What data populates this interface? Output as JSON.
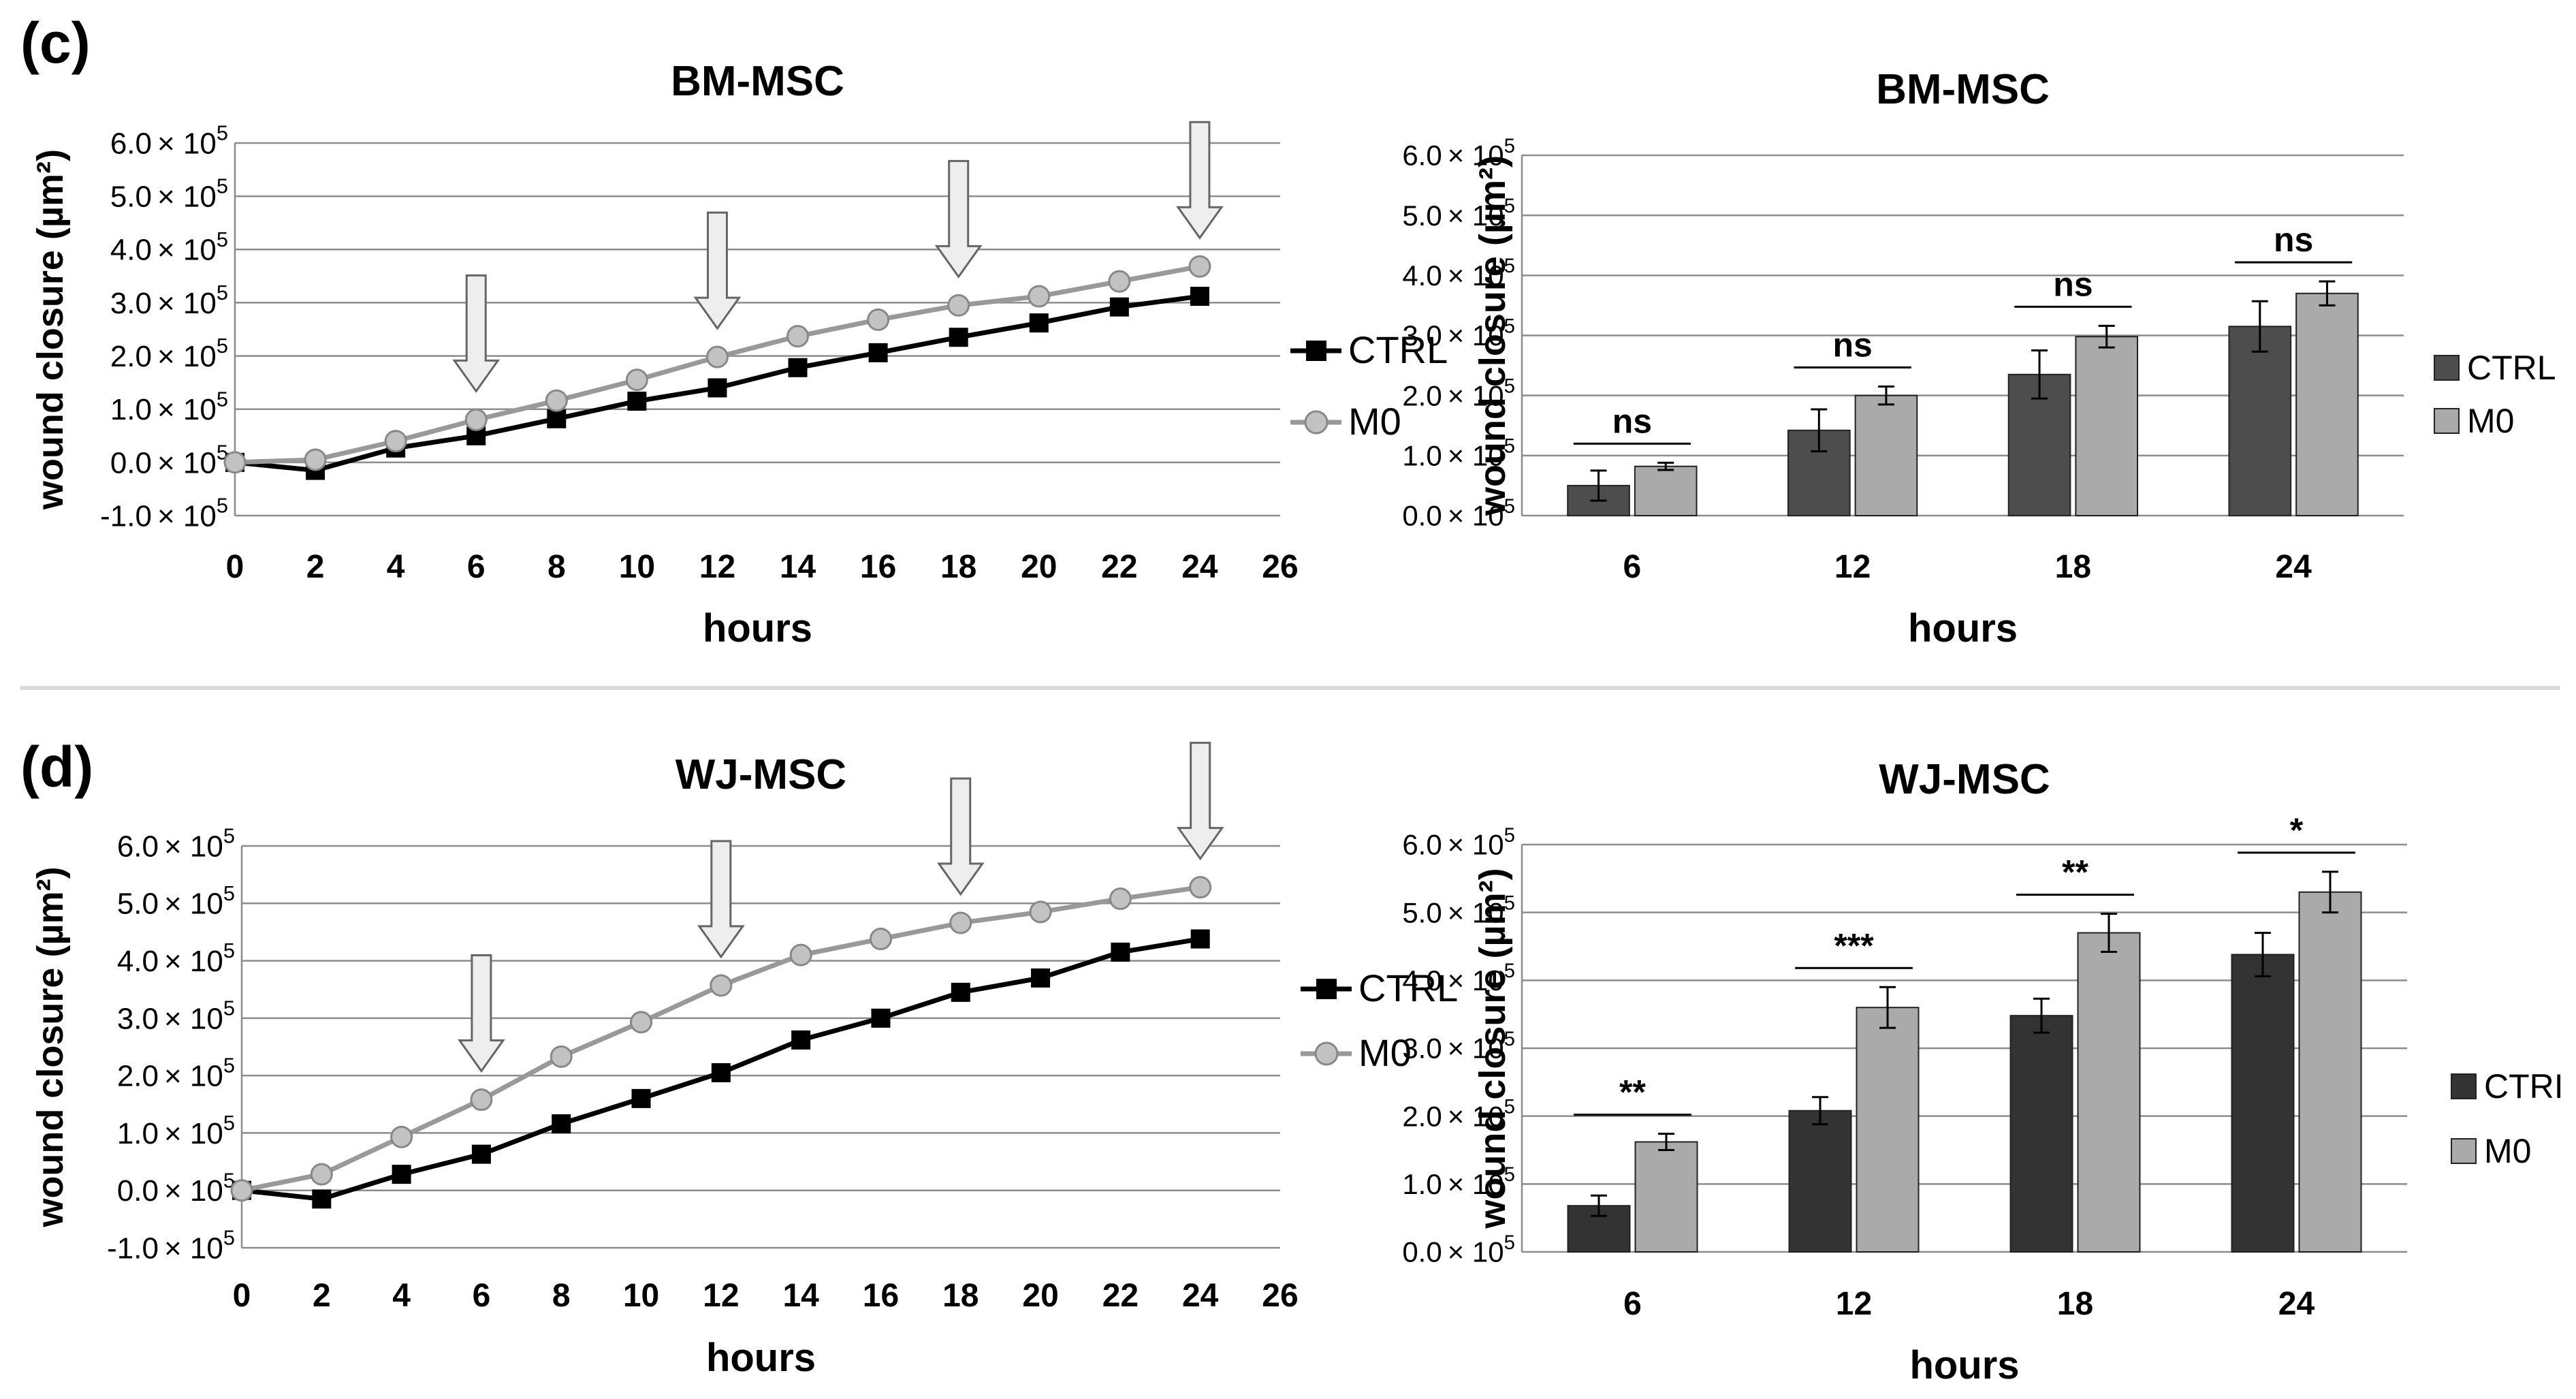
{
  "panels": {
    "c": {
      "label": "(c)"
    },
    "d": {
      "label": "(d)"
    }
  },
  "chart_data": [
    {
      "id": "c-line",
      "type": "line",
      "title": "BM-MSC",
      "xlabel": "hours",
      "ylabel": "wound closure (µm²)",
      "x_ticks": [
        "0",
        "2",
        "4",
        "6",
        "8",
        "10",
        "12",
        "14",
        "16",
        "18",
        "20",
        "22",
        "24",
        "26"
      ],
      "xlim": [
        0,
        26
      ],
      "ylim": [
        -1.0,
        6.0
      ],
      "y_ticks": [
        -1,
        0,
        1,
        2,
        3,
        4,
        5,
        6
      ],
      "y_tick_mantissa": [
        "-1.0",
        "0.0",
        "1.0",
        "2.0",
        "3.0",
        "4.0",
        "5.0",
        "6.0"
      ],
      "y_scale_text": "× 10",
      "y_scale_exp": "5",
      "y_unit": "× 10^5 µm²",
      "arrows_at": [
        6,
        12,
        18,
        24
      ],
      "legend_position": "right",
      "x": [
        0,
        2,
        4,
        6,
        8,
        10,
        12,
        14,
        16,
        18,
        20,
        22,
        24
      ],
      "series": [
        {
          "name": "CTRL",
          "marker": "square",
          "color": "#000000",
          "values": [
            0.0,
            -0.15,
            0.27,
            0.5,
            0.82,
            1.15,
            1.4,
            1.78,
            2.06,
            2.35,
            2.62,
            2.92,
            3.12
          ]
        },
        {
          "name": "M0",
          "marker": "circle",
          "color": "#999999",
          "values": [
            0.0,
            0.05,
            0.4,
            0.8,
            1.16,
            1.55,
            1.98,
            2.37,
            2.68,
            2.95,
            3.12,
            3.4,
            3.68
          ]
        }
      ]
    },
    {
      "id": "c-bar",
      "type": "bar",
      "title": "BM-MSC",
      "xlabel": "hours",
      "ylabel": "wound closure (µm²)",
      "categories": [
        "6",
        "12",
        "18",
        "24"
      ],
      "ylim": [
        0,
        6.0
      ],
      "y_ticks": [
        0,
        1,
        2,
        3,
        4,
        5,
        6
      ],
      "y_tick_mantissa": [
        "0.0",
        "1.0",
        "2.0",
        "3.0",
        "4.0",
        "5.0",
        "6.0"
      ],
      "y_scale_text": "× 10",
      "y_scale_exp": "5",
      "y_unit": "× 10^5 µm²",
      "legend_position": "right",
      "series": [
        {
          "name": "CTRL",
          "color": "#4d4d4d",
          "values": [
            0.5,
            1.42,
            2.35,
            3.15
          ],
          "errors": [
            0.25,
            0.35,
            0.4,
            0.42
          ]
        },
        {
          "name": "M0",
          "color": "#aaaaaa",
          "values": [
            0.82,
            2.0,
            2.98,
            3.7
          ],
          "errors": [
            0.06,
            0.15,
            0.18,
            0.2
          ]
        }
      ],
      "significance": [
        "ns",
        "ns",
        "ns",
        "ns"
      ]
    },
    {
      "id": "d-line",
      "type": "line",
      "title": "WJ-MSC",
      "xlabel": "hours",
      "ylabel": "wound closure (µm²)",
      "x_ticks": [
        "0",
        "2",
        "4",
        "6",
        "8",
        "10",
        "12",
        "14",
        "16",
        "18",
        "20",
        "22",
        "24",
        "26"
      ],
      "xlim": [
        0,
        26
      ],
      "ylim": [
        -1.0,
        6.0
      ],
      "y_ticks": [
        -1,
        0,
        1,
        2,
        3,
        4,
        5,
        6
      ],
      "y_tick_mantissa": [
        "-1.0",
        "0.0",
        "1.0",
        "2.0",
        "3.0",
        "4.0",
        "5.0",
        "6.0"
      ],
      "y_scale_text": "× 10",
      "y_scale_exp": "5",
      "y_unit": "× 10^5 µm²",
      "arrows_at": [
        6,
        12,
        18,
        24
      ],
      "legend_position": "right",
      "x": [
        0,
        2,
        4,
        6,
        8,
        10,
        12,
        14,
        16,
        18,
        20,
        22,
        24
      ],
      "series": [
        {
          "name": "CTRL",
          "marker": "square",
          "color": "#000000",
          "values": [
            0.0,
            -0.15,
            0.28,
            0.63,
            1.16,
            1.6,
            2.05,
            2.62,
            3.0,
            3.45,
            3.7,
            4.15,
            4.38
          ]
        },
        {
          "name": "M0",
          "marker": "circle",
          "color": "#999999",
          "values": [
            0.0,
            0.28,
            0.93,
            1.58,
            2.33,
            2.93,
            3.57,
            4.1,
            4.38,
            4.66,
            4.85,
            5.08,
            5.28
          ]
        }
      ]
    },
    {
      "id": "d-bar",
      "type": "bar",
      "title": "WJ-MSC",
      "xlabel": "hours",
      "ylabel": "wound closure (µm²)",
      "categories": [
        "6",
        "12",
        "18",
        "24"
      ],
      "ylim": [
        0,
        6.0
      ],
      "y_ticks": [
        0,
        1,
        2,
        3,
        4,
        5,
        6
      ],
      "y_tick_mantissa": [
        "0.0",
        "1.0",
        "2.0",
        "3.0",
        "4.0",
        "5.0",
        "6.0"
      ],
      "y_scale_text": "× 10",
      "y_scale_exp": "5",
      "y_unit": "× 10^5 µm²",
      "legend_position": "right",
      "series": [
        {
          "name": "CTRI",
          "color": "#333333",
          "values": [
            0.68,
            2.08,
            3.48,
            4.38
          ],
          "errors": [
            0.15,
            0.2,
            0.25,
            0.32
          ]
        },
        {
          "name": "M0",
          "color": "#aaaaaa",
          "values": [
            1.62,
            3.6,
            4.7,
            5.3
          ],
          "errors": [
            0.12,
            0.3,
            0.28,
            0.3
          ]
        }
      ],
      "significance": [
        "**",
        "***",
        "**",
        "*"
      ]
    }
  ]
}
